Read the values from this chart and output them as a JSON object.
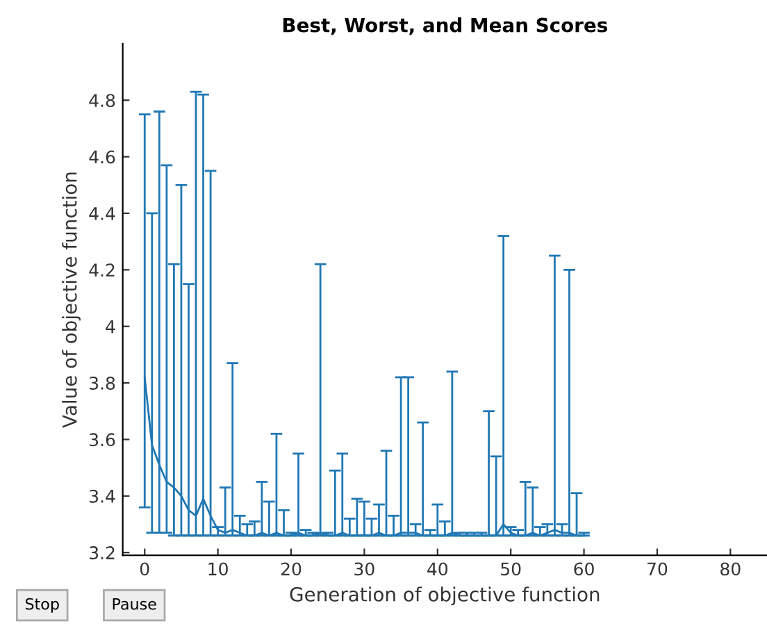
{
  "chart_data": {
    "type": "line",
    "title": "Best, Worst, and Mean Scores",
    "xlabel": "Generation of objective function",
    "ylabel": "Value of objective function",
    "x": [
      0,
      1,
      2,
      3,
      4,
      5,
      6,
      7,
      8,
      9,
      10,
      11,
      12,
      13,
      14,
      15,
      16,
      17,
      18,
      19,
      20,
      21,
      22,
      23,
      24,
      25,
      26,
      27,
      28,
      29,
      30,
      31,
      32,
      33,
      34,
      35,
      36,
      37,
      38,
      39,
      40,
      41,
      42,
      43,
      44,
      45,
      46,
      47,
      48,
      49,
      50,
      51,
      52,
      53,
      54,
      55,
      56,
      57,
      58,
      59,
      60
    ],
    "series": [
      {
        "color": "#1f77b4",
        "values": [
          3.82,
          3.58,
          3.51,
          3.45,
          3.43,
          3.4,
          3.35,
          3.33,
          3.39,
          3.33,
          3.28,
          3.27,
          3.28,
          3.27,
          3.26,
          3.26,
          3.27,
          3.26,
          3.27,
          3.26,
          3.26,
          3.27,
          3.26,
          3.26,
          3.27,
          3.26,
          3.26,
          3.27,
          3.26,
          3.26,
          3.26,
          3.26,
          3.27,
          3.26,
          3.26,
          3.27,
          3.27,
          3.27,
          3.26,
          3.26,
          3.26,
          3.26,
          3.27,
          3.26,
          3.26,
          3.26,
          3.26,
          3.26,
          3.26,
          3.3,
          3.27,
          3.26,
          3.26,
          3.27,
          3.26,
          3.27,
          3.28,
          3.27,
          3.27,
          3.26,
          3.26
        ],
        "errors": [
          [
            3.36,
            4.75
          ],
          [
            3.27,
            4.4
          ],
          [
            3.27,
            4.76
          ],
          [
            3.27,
            4.57
          ],
          [
            3.26,
            4.22
          ],
          [
            3.26,
            4.5
          ],
          [
            3.26,
            4.15
          ],
          [
            3.26,
            4.83
          ],
          [
            3.26,
            4.82
          ],
          [
            3.26,
            4.55
          ],
          [
            3.26,
            3.29
          ],
          [
            3.26,
            3.43
          ],
          [
            3.26,
            3.87
          ],
          [
            3.26,
            3.33
          ],
          [
            3.26,
            3.3
          ],
          [
            3.26,
            3.31
          ],
          [
            3.26,
            3.45
          ],
          [
            3.26,
            3.38
          ],
          [
            3.26,
            3.62
          ],
          [
            3.26,
            3.35
          ],
          [
            3.26,
            3.27
          ],
          [
            3.26,
            3.55
          ],
          [
            3.26,
            3.28
          ],
          [
            3.26,
            3.27
          ],
          [
            3.26,
            4.22
          ],
          [
            3.26,
            3.27
          ],
          [
            3.26,
            3.49
          ],
          [
            3.26,
            3.55
          ],
          [
            3.26,
            3.32
          ],
          [
            3.26,
            3.39
          ],
          [
            3.26,
            3.38
          ],
          [
            3.26,
            3.32
          ],
          [
            3.26,
            3.37
          ],
          [
            3.26,
            3.56
          ],
          [
            3.26,
            3.33
          ],
          [
            3.26,
            3.82
          ],
          [
            3.26,
            3.82
          ],
          [
            3.26,
            3.3
          ],
          [
            3.26,
            3.66
          ],
          [
            3.26,
            3.28
          ],
          [
            3.26,
            3.37
          ],
          [
            3.26,
            3.31
          ],
          [
            3.26,
            3.84
          ],
          [
            3.26,
            3.27
          ],
          [
            3.26,
            3.27
          ],
          [
            3.26,
            3.27
          ],
          [
            3.26,
            3.27
          ],
          [
            3.26,
            3.7
          ],
          [
            3.26,
            3.54
          ],
          [
            3.26,
            4.32
          ],
          [
            3.26,
            3.29
          ],
          [
            3.26,
            3.28
          ],
          [
            3.26,
            3.45
          ],
          [
            3.26,
            3.43
          ],
          [
            3.26,
            3.29
          ],
          [
            3.26,
            3.3
          ],
          [
            3.26,
            4.25
          ],
          [
            3.26,
            3.3
          ],
          [
            3.26,
            4.2
          ],
          [
            3.26,
            3.41
          ],
          [
            3.26,
            3.27
          ]
        ]
      }
    ],
    "xlim": [
      -3,
      85
    ],
    "xticks": [
      0,
      10,
      20,
      30,
      40,
      50,
      60,
      70,
      80
    ],
    "ylim": [
      3.19,
      5.0
    ],
    "yticks": [
      3.2,
      3.4,
      3.6,
      3.8,
      4,
      4.2,
      4.4,
      4.6,
      4.8
    ],
    "annotations": [
      "Stop",
      "Pause"
    ]
  }
}
